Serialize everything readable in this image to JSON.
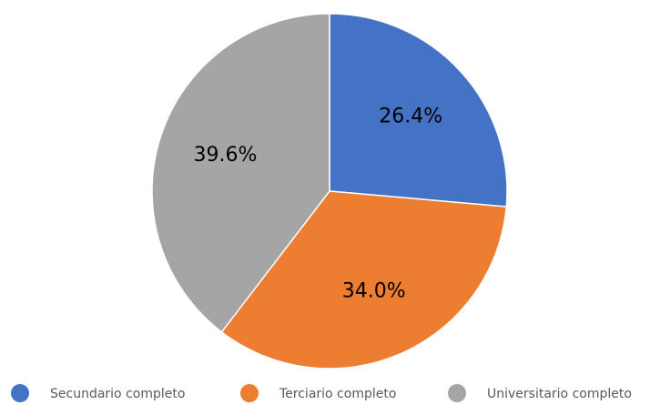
{
  "chart_data": {
    "type": "pie",
    "categories": [
      "Secundario completo",
      "Terciario completo",
      "Universitario completo"
    ],
    "values": [
      26.4,
      34.0,
      39.6
    ],
    "value_labels": [
      "26.4%",
      "34.0%",
      "39.6%"
    ],
    "colors": [
      "#4472c4",
      "#ed7d31",
      "#a5a5a5"
    ],
    "legend": "bottom"
  }
}
